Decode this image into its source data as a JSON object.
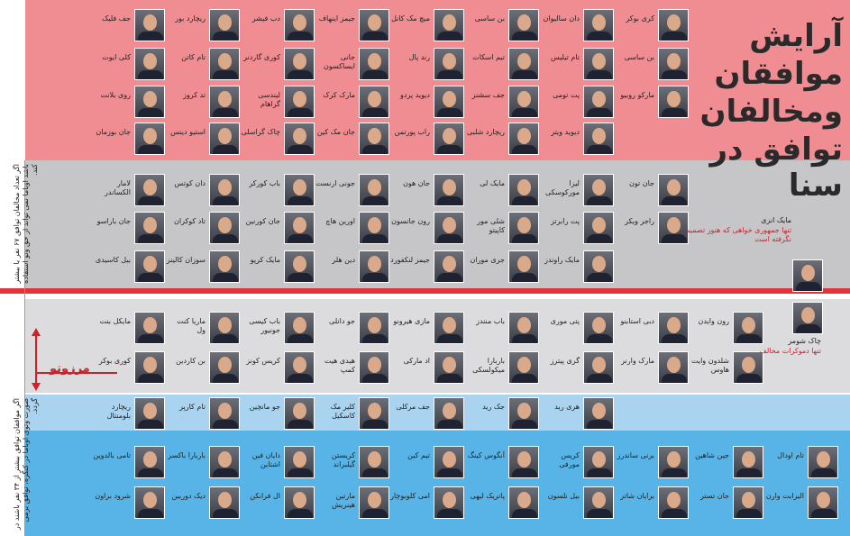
{
  "title_lines": [
    "آرایش",
    "موافقان",
    "ومخالفان",
    "توافق در سنا"
  ],
  "sections": [
    {
      "rows": [
        [
          "کری بوکر",
          "دان سالیوان",
          "بن ساسی",
          "میچ مک کانل",
          "جیمز اینهاف",
          "دب فیشر",
          "ریچارد بور",
          "جف فلیک"
        ],
        [
          "بن ساسی",
          "تام تیلیس",
          "تیم اسکات",
          "رند پال",
          "جانی ایساکسون",
          "کوری گاردنر",
          "تام کاتن",
          "کلی ایوت"
        ],
        [
          "مارکو روبیو",
          "پت تومی",
          "جف سشنز",
          "دیوید پردو",
          "مارک کرک",
          "لیندسی گراهام",
          "تد کروز",
          "روی بلانت"
        ],
        [
          "دیوید ویتر",
          "ریچارد شلبی",
          "راب پورتمن",
          "جان مک کین",
          "چاک گراسلی",
          "استیو دینس",
          "جان بوزمان"
        ]
      ]
    },
    {
      "rows": [
        [
          "جان تون",
          "لیزا مورکوسکی",
          "مایک لی",
          "جان هون",
          "جونی ارنست",
          "باب کورکر",
          "دان کوتس",
          "لامار الکساندر"
        ],
        [
          "راجر ویکر",
          "پت رابرتز",
          "شلی مور کاپیتو",
          "رون جانسون",
          "اورین هاچ",
          "جان کورنین",
          "تاد کوکران",
          "جان باراسو"
        ],
        [
          "مایک راوندز",
          "جری موران",
          "جیمز لنکفورد",
          "دین هلر",
          "مایک کرپو",
          "سوزان کالینز",
          "بیل کاسیدی"
        ]
      ]
    },
    {
      "rows": [
        [
          "رون وایدن",
          "دبی استابنو",
          "پتی موری",
          "باب منندز",
          "مازی هیرونو",
          "جو دانلی",
          "باب کیسی جونیور",
          "ماریا کنت ول",
          "مایکل بنت"
        ],
        [
          "شلدون وایت هاوس",
          "مارک وارنر",
          "گری پیترز",
          "باربارا میکولسکی",
          "اد مارکی",
          "هیدی هیت کمپ",
          "کریس کونز",
          "بن کاردین",
          "کوری بوکر"
        ]
      ]
    },
    {
      "rows": [
        [
          "هری رید",
          "جک رید",
          "جف مرکلی",
          "کلیر مک کاسکیل",
          "جو مانچین",
          "تام کارپر",
          "ریچارد بلومنتال"
        ]
      ]
    },
    {
      "rows": [
        [
          "تام اودال",
          "جین شاهین",
          "برنی ساندرز",
          "کریس مورفی",
          "آنگوس کینگ",
          "تیم کین",
          "کریستن گیلبراند",
          "دایان فین اشتاین",
          "باربارا باکسر",
          "تامی بالدوین"
        ],
        [
          "الیزابت وارن",
          "جان تستر",
          "برایان شاتز",
          "بیل نلسون",
          "پاتریک لیهی",
          "امی کلوبوچار",
          "مارتین هینریش",
          "ال فرانکن",
          "دیک دوربین",
          "شرود براون"
        ]
      ]
    }
  ],
  "undecided": {
    "name": "مایک انزی",
    "note": "تنها جمهوری خواهی که هنوز تصمیم نگرفته است"
  },
  "dissent": {
    "name": "چاک شومر",
    "note": "تنها دموکرات مخالف"
  },
  "veto_label": "مرزوتو",
  "notes": {
    "opponents": "اگر تعداد مخالفان توافق ۶۷ نفر یا بیشتر باشد اوباما نمی تواند از حق وتو استفاده کند.",
    "supporters": "اگر موافقان توافق بیشتر از ۳۴ نفر باشند در صورت وتوی اوباما در کنگره، توافق برمی گردد."
  }
}
